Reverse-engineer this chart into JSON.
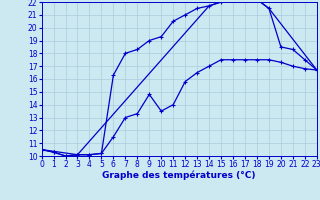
{
  "xlabel": "Graphe des températures (°C)",
  "xlim": [
    0,
    23
  ],
  "ylim": [
    10,
    22
  ],
  "xticks": [
    0,
    1,
    2,
    3,
    4,
    5,
    6,
    7,
    8,
    9,
    10,
    11,
    12,
    13,
    14,
    15,
    16,
    17,
    18,
    19,
    20,
    21,
    22,
    23
  ],
  "yticks": [
    10,
    11,
    12,
    13,
    14,
    15,
    16,
    17,
    18,
    19,
    20,
    21,
    22
  ],
  "background_color": "#cce8f0",
  "line_color": "#0000cc",
  "grid_color": "#aaccdd",
  "line1_x": [
    0,
    1,
    2,
    3,
    4,
    5,
    6,
    7,
    8,
    9,
    10,
    11,
    12,
    13,
    14,
    15,
    16,
    17,
    18,
    19,
    20,
    21,
    22,
    23
  ],
  "line1_y": [
    10.5,
    10.3,
    10.0,
    10.1,
    10.1,
    10.2,
    11.5,
    13.0,
    13.3,
    14.8,
    13.5,
    14.0,
    15.8,
    16.5,
    17.0,
    17.5,
    17.5,
    17.5,
    17.5,
    17.5,
    17.3,
    17.0,
    16.8,
    16.7
  ],
  "line2_x": [
    0,
    1,
    2,
    3,
    4,
    5,
    6,
    7,
    8,
    9,
    10,
    11,
    12,
    13,
    14,
    15,
    16,
    17,
    18,
    19,
    20,
    21,
    22,
    23
  ],
  "line2_y": [
    10.5,
    10.3,
    10.0,
    10.1,
    10.1,
    10.2,
    16.3,
    18.0,
    18.3,
    19.0,
    19.3,
    20.5,
    21.0,
    21.5,
    21.7,
    22.0,
    22.2,
    22.2,
    22.2,
    21.5,
    18.5,
    18.3,
    17.5,
    16.7
  ],
  "line3_x": [
    0,
    3,
    14,
    15,
    16,
    17,
    18,
    19,
    23
  ],
  "line3_y": [
    10.5,
    10.1,
    21.7,
    22.0,
    22.2,
    22.2,
    22.2,
    21.5,
    16.7
  ],
  "markersize": 3.5,
  "linewidth": 0.9,
  "tick_fontsize": 5.5,
  "xlabel_fontsize": 6.5
}
